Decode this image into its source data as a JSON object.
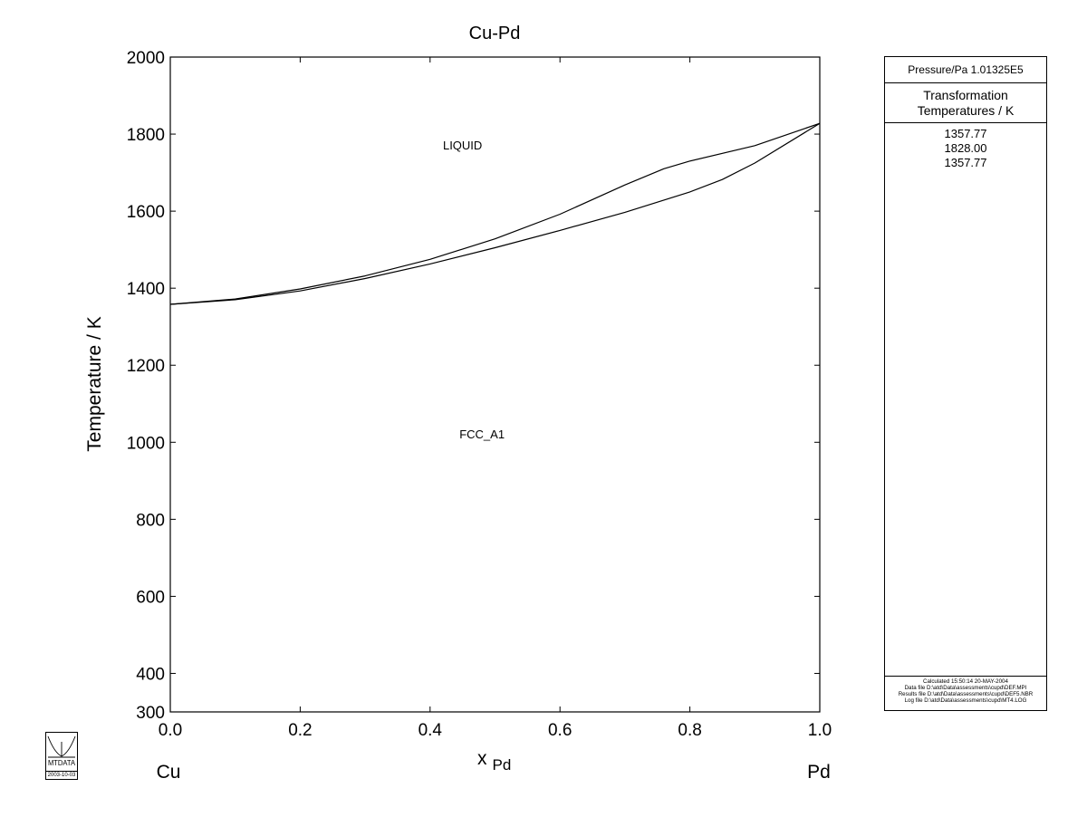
{
  "chart_data": {
    "type": "line",
    "title": "Cu-Pd",
    "xlabel": "x",
    "xlabel_subscript": "Pd",
    "ylabel": "Temperature / K",
    "xlim": [
      0.0,
      1.0
    ],
    "ylim": [
      300,
      2000
    ],
    "x_ticks": [
      "0.0",
      "0.2",
      "0.4",
      "0.6",
      "0.8",
      "1.0"
    ],
    "y_ticks": [
      "300",
      "400",
      "600",
      "800",
      "1000",
      "1200",
      "1400",
      "1600",
      "1800",
      "2000"
    ],
    "grid": false,
    "x_end_labels": {
      "left": "Cu",
      "right": "Pd"
    },
    "series": [
      {
        "x": [
          0.0,
          0.1,
          0.2,
          0.3,
          0.4,
          0.5,
          0.6,
          0.7,
          0.76,
          0.8,
          0.9,
          1.0
        ],
        "y": [
          1358,
          1372,
          1398,
          1432,
          1475,
          1528,
          1592,
          1668,
          1710,
          1730,
          1770,
          1828
        ]
      },
      {
        "x": [
          0.0,
          0.1,
          0.2,
          0.3,
          0.4,
          0.5,
          0.6,
          0.7,
          0.8,
          0.85,
          0.9,
          1.0
        ],
        "y": [
          1358,
          1370,
          1393,
          1425,
          1463,
          1505,
          1550,
          1597,
          1650,
          1682,
          1725,
          1828
        ]
      }
    ],
    "annotations": [
      {
        "text": "LIQUID",
        "x": 0.45,
        "y": 1760
      },
      {
        "text": "FCC_A1",
        "x": 0.48,
        "y": 1010
      }
    ]
  },
  "side_panel": {
    "pressure": "Pressure/Pa  1.01325E5",
    "heading_line1": "Transformation",
    "heading_line2": "Temperatures / K",
    "temperatures": [
      "1357.77",
      "1828.00",
      "1357.77"
    ],
    "footer": [
      "Calculated  15:50:14  20-MAY-2004",
      "Data file  D:\\atd\\Data\\assessments\\cupd\\DEF.MPI",
      "Results file  D:\\atd\\Data\\assessments\\cupd\\DEF5.NBR",
      "Log file  D:\\atd\\Data\\assessments\\cupd\\MT4.LOG"
    ]
  },
  "logo": {
    "text": "MTDATA",
    "date": "2003-10-03"
  }
}
